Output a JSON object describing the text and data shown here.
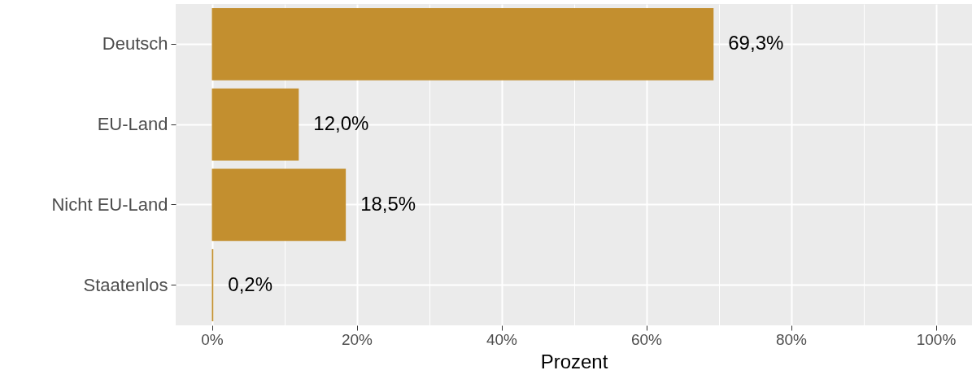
{
  "chart_data": {
    "type": "bar",
    "orientation": "horizontal",
    "xlabel": "Prozent",
    "categories": [
      "Deutsch",
      "EU-Land",
      "Nicht EU-Land",
      "Staatenlos"
    ],
    "values": [
      69.3,
      12.0,
      18.5,
      0.2
    ],
    "value_labels": [
      "69,3%",
      "12,0%",
      "18,5%",
      "0,2%"
    ],
    "color": "#c38f2f",
    "xlim": [
      -5,
      105
    ],
    "xticks": [
      {
        "value": 0,
        "label": "0%"
      },
      {
        "value": 10,
        "label": null
      },
      {
        "value": 20,
        "label": "20%"
      },
      {
        "value": 30,
        "label": null
      },
      {
        "value": 40,
        "label": "40%"
      },
      {
        "value": 50,
        "label": null
      },
      {
        "value": 60,
        "label": "60%"
      },
      {
        "value": 70,
        "label": null
      },
      {
        "value": 80,
        "label": "80%"
      },
      {
        "value": 90,
        "label": null
      },
      {
        "value": 100,
        "label": "100%"
      }
    ],
    "grid": true
  }
}
